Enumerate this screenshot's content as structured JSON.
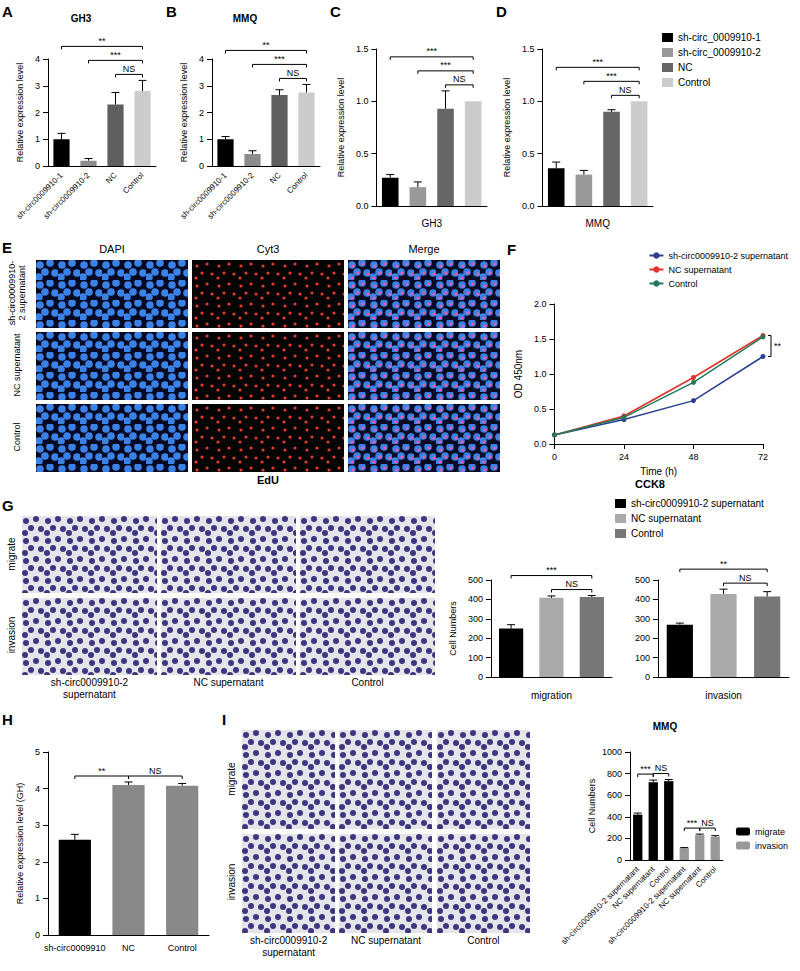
{
  "chart_data": [
    {
      "panel": "A",
      "type": "bar",
      "title": "GH3",
      "categories": [
        "sh-circ0009910-1",
        "sh-circ0009910-2",
        "NC",
        "Control"
      ],
      "values": [
        1.0,
        0.2,
        2.3,
        2.8
      ],
      "errors": [
        0.22,
        0.08,
        0.45,
        0.4
      ],
      "colors": [
        "#000000",
        "#8c8c8c",
        "#5f5f5f",
        "#cccccc"
      ],
      "ylabel": "Relative expression level",
      "ylim": [
        0,
        4
      ],
      "yticks": [
        0,
        1,
        2,
        3,
        4
      ],
      "annotations": [
        {
          "from": 2,
          "to": 3,
          "text": "NS"
        },
        {
          "from": 1,
          "to": 3,
          "text": "***"
        },
        {
          "from": 0,
          "to": 3,
          "text": "**"
        }
      ]
    },
    {
      "panel": "B",
      "type": "bar",
      "title": "MMQ",
      "categories": [
        "sh-circ0009910-1",
        "sh-circ0009910-2",
        "NC",
        "Control"
      ],
      "values": [
        1.0,
        0.45,
        2.65,
        2.75
      ],
      "errors": [
        0.1,
        0.12,
        0.2,
        0.3
      ],
      "colors": [
        "#000000",
        "#8c8c8c",
        "#5f5f5f",
        "#cccccc"
      ],
      "ylabel": "Relative expression level",
      "ylim": [
        0,
        4
      ],
      "yticks": [
        0,
        1,
        2,
        3,
        4
      ],
      "annotations": [
        {
          "from": 2,
          "to": 3,
          "text": "NS"
        },
        {
          "from": 1,
          "to": 3,
          "text": "***"
        },
        {
          "from": 0,
          "to": 3,
          "text": "**"
        }
      ]
    },
    {
      "panel": "C",
      "type": "bar",
      "xlabel": "GH3",
      "categories": [
        null,
        null,
        null,
        null
      ],
      "values": [
        0.27,
        0.18,
        0.93,
        1.0
      ],
      "errors": [
        0.03,
        0.05,
        0.17,
        0
      ],
      "colors": [
        "#000000",
        "#999999",
        "#666666",
        "#cccccc"
      ],
      "ylabel": "Relative expression level",
      "ylim": [
        0,
        1.5
      ],
      "yticks": [
        {
          "value": 0,
          "label": "0.0"
        },
        0.5,
        {
          "value": 1,
          "label": "1.0"
        },
        1.5
      ],
      "annotations": [
        {
          "from": 2,
          "to": 3,
          "text": "NS"
        },
        {
          "from": 1,
          "to": 3,
          "text": "***"
        },
        {
          "from": 0,
          "to": 3,
          "text": "***"
        }
      ]
    },
    {
      "panel": "D",
      "type": "bar",
      "xlabel": "MMQ",
      "categories": [
        null,
        null,
        null,
        null
      ],
      "values": [
        0.36,
        0.3,
        0.9,
        1.0
      ],
      "errors": [
        0.06,
        0.04,
        0.02,
        0
      ],
      "colors": [
        "#000000",
        "#999999",
        "#666666",
        "#cccccc"
      ],
      "ylabel": "Relative expression level",
      "ylim": [
        0,
        1.5
      ],
      "yticks": [
        {
          "value": 0,
          "label": "0.0"
        },
        0.5,
        {
          "value": 1,
          "label": "1.0"
        },
        1.5
      ],
      "annotations": [
        {
          "from": 2,
          "to": 3,
          "text": "NS"
        },
        {
          "from": 1,
          "to": 3,
          "text": "***"
        },
        {
          "from": 0,
          "to": 3,
          "text": "***"
        }
      ]
    },
    {
      "panel": "F",
      "type": "line",
      "title": "CCK8",
      "x": [
        0,
        24,
        48,
        72
      ],
      "xlabel": "Time (h)",
      "ylabel": "OD 450nm",
      "xlim": [
        0,
        72
      ],
      "xticks": [
        0,
        24,
        48,
        72
      ],
      "ylim": [
        0,
        2
      ],
      "yticks": [
        {
          "value": 0,
          "label": "0.0"
        },
        0.5,
        {
          "value": 1,
          "label": "1.0"
        },
        1.5,
        {
          "value": 2,
          "label": "2.0"
        }
      ],
      "marker": "circle",
      "legend": "upper right",
      "series": [
        {
          "name": "sh-circ0009910-2 supernatant",
          "color": "#2a3f8f",
          "values": [
            0.13,
            0.35,
            0.62,
            1.25
          ]
        },
        {
          "name": "NC supernatant",
          "color": "#e3302a",
          "values": [
            0.13,
            0.4,
            0.95,
            1.55
          ]
        },
        {
          "name": "Control",
          "color": "#1f7a5c",
          "values": [
            0.13,
            0.38,
            0.88,
            1.53
          ]
        }
      ],
      "annotations": [
        {
          "x": 72,
          "from": 0,
          "to": 1,
          "text": "**"
        }
      ]
    },
    {
      "type": "bar",
      "xlabel": "migration",
      "ylabel": "Cell Numbers",
      "categories": [
        null,
        null,
        null
      ],
      "values": [
        250,
        408,
        412
      ],
      "errors": [
        20,
        10,
        8
      ],
      "colors": [
        "#000000",
        "#aaaaaa",
        "#777777"
      ],
      "ylim": [
        0,
        500
      ],
      "yticks": [
        0,
        100,
        200,
        300,
        400,
        500
      ],
      "annotations": [
        {
          "from": 1,
          "to": 2,
          "text": "NS"
        },
        {
          "from": 0,
          "to": 2,
          "text": "***"
        }
      ]
    },
    {
      "type": "bar",
      "xlabel": "invasion",
      "categories": [
        null,
        null,
        null
      ],
      "values": [
        270,
        428,
        415
      ],
      "errors": [
        8,
        25,
        25
      ],
      "colors": [
        "#000000",
        "#aaaaaa",
        "#777777"
      ],
      "ylim": [
        0,
        500
      ],
      "yticks": [
        0,
        100,
        200,
        300,
        400,
        500
      ],
      "annotations": [
        {
          "from": 1,
          "to": 2,
          "text": "NS"
        },
        {
          "from": 0,
          "to": 2,
          "text": "**"
        }
      ]
    },
    {
      "panel": "H",
      "type": "bar",
      "categories": [
        "sh-circ0009910",
        "NC",
        "Control"
      ],
      "values": [
        2.6,
        4.1,
        4.08
      ],
      "errors": [
        0.15,
        0.08,
        0.06
      ],
      "colors": [
        "#000000",
        "#888888",
        "#888888"
      ],
      "ylabel": "Relative expression level (GH)",
      "ylim": [
        0,
        5
      ],
      "yticks": [
        0,
        1,
        2,
        3,
        4,
        5
      ],
      "annotations": [
        {
          "from": 0,
          "to": 1,
          "text": "**"
        },
        {
          "from": 1,
          "to": 2,
          "text": "NS"
        }
      ]
    },
    {
      "type": "bar",
      "title": "MMQ",
      "categories": [
        "sh-circ0009910-2 supernatant",
        "NC supernatant",
        "Control",
        "sh-circ0009910-2 supernatant",
        "NC supernatant",
        "Control"
      ],
      "ylabel": "Cell Numbers",
      "ylim": [
        0,
        1000
      ],
      "yticks": [
        0,
        200,
        400,
        600,
        800,
        1000
      ],
      "legend": "right",
      "series": [
        {
          "name": "migrate",
          "color": "#000000",
          "values": [
            420,
            720,
            730,
            null,
            null,
            null
          ],
          "errors": [
            15,
            20,
            15,
            null,
            null,
            null
          ]
        },
        {
          "name": "invasion",
          "color": "#999999",
          "values": [
            null,
            null,
            null,
            110,
            230,
            215
          ],
          "errors": [
            null,
            null,
            null,
            5,
            10,
            10
          ]
        }
      ],
      "annotations": [
        {
          "from": 0,
          "to": 1,
          "text": "***"
        },
        {
          "from": 1,
          "to": 2,
          "text": "NS"
        },
        {
          "from": 3,
          "to": 4,
          "text": "***"
        },
        {
          "from": 4,
          "to": 5,
          "text": "NS"
        }
      ]
    }
  ],
  "image_panels": [
    {
      "panel": "E",
      "columns": [
        "DAPI",
        "Cyt3",
        "Merge"
      ],
      "rows": [
        "sh-circ0009910-2 supernatant",
        "NC supernatant",
        "Control"
      ],
      "caption": "EdU"
    },
    {
      "panel": "G",
      "rows": [
        "migrate",
        "invasion"
      ],
      "columns": [
        "sh-circ0009910-2 supernatant",
        "NC supernatant",
        "Control"
      ]
    },
    {
      "panel": "I",
      "rows": [
        "migrate",
        "invasion"
      ],
      "columns": [
        "sh-circ0009910-2 supernatant",
        "NC supernatant",
        "Control"
      ]
    }
  ],
  "legends": [
    {
      "items": [
        {
          "name": "sh-circ_0009910-1",
          "color": "#000000"
        },
        {
          "name": "sh-circ_0009910-2",
          "color": "#999999"
        },
        {
          "name": "NC",
          "color": "#666666"
        },
        {
          "name": "Control",
          "color": "#cccccc"
        }
      ]
    },
    {
      "items": [
        {
          "name": "sh-circ0009910-2 supernatant",
          "color": "#000000"
        },
        {
          "name": "NC supernatant",
          "color": "#aaaaaa"
        },
        {
          "name": "Control",
          "color": "#777777"
        }
      ]
    }
  ]
}
